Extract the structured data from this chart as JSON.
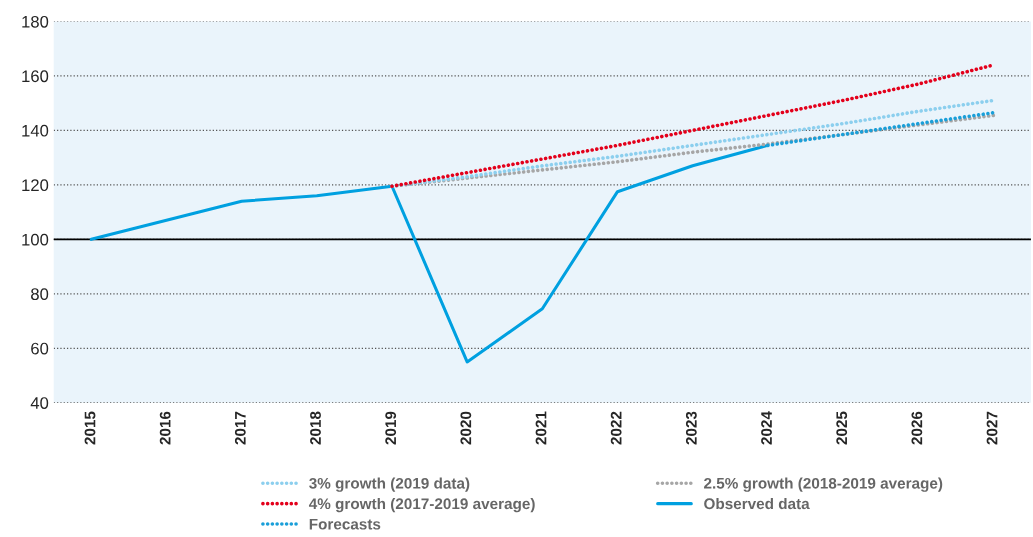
{
  "chart_data": {
    "type": "line",
    "categories": [
      "2015",
      "2016",
      "2017",
      "2018",
      "2019",
      "2020",
      "2021",
      "2022",
      "2023",
      "2024",
      "2025",
      "2026",
      "2027"
    ],
    "series": [
      {
        "name": "3% growth (2019 data)",
        "color": "#8ccfee",
        "line_style": "dotted",
        "values": [
          null,
          null,
          null,
          null,
          119.5,
          123,
          127,
          130.5,
          134.5,
          138.5,
          142.5,
          147,
          151
        ]
      },
      {
        "name": "4% growth (2017-2019 average)",
        "color": "#e3001b",
        "line_style": "dotted",
        "values": [
          null,
          null,
          null,
          null,
          119.5,
          124.5,
          129.5,
          134.5,
          140,
          145.5,
          151,
          157,
          164
        ]
      },
      {
        "name": "Forecasts",
        "color": "#1a9fd9",
        "line_style": "dotted",
        "values": [
          null,
          null,
          null,
          null,
          null,
          null,
          null,
          null,
          null,
          134.5,
          138.5,
          142.5,
          146.5
        ]
      },
      {
        "name": "2.5% growth (2018-2019 average)",
        "color": "#a6a6a6",
        "line_style": "dotted",
        "values": [
          null,
          null,
          null,
          null,
          119.5,
          122.5,
          125.5,
          128.5,
          132,
          135,
          138.5,
          142,
          145.5
        ]
      },
      {
        "name": "Observed data",
        "color": "#00a0e0",
        "line_style": "solid",
        "values": [
          100,
          107,
          114,
          116,
          119.5,
          55,
          74.5,
          117.5,
          127,
          134.5,
          null,
          null,
          null
        ]
      }
    ],
    "ylim": [
      40,
      180
    ],
    "yticks": [
      40,
      60,
      80,
      100,
      120,
      140,
      160,
      180
    ],
    "ref_lines": [
      {
        "axis": "y",
        "value": 100,
        "color": "#000000",
        "line_style": "solid"
      }
    ],
    "grid": "y",
    "legend": "bottom",
    "marker": "none"
  }
}
